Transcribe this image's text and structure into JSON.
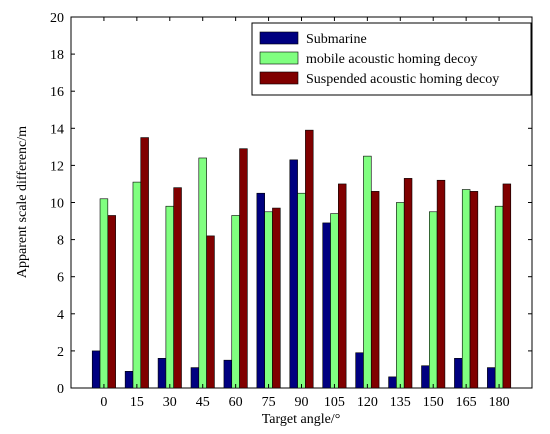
{
  "chart_data": {
    "type": "bar",
    "xlabel": "Target angle/°",
    "ylabel": "Apparent scale differenc/m",
    "categories": [
      "0",
      "15",
      "30",
      "45",
      "60",
      "75",
      "90",
      "105",
      "120",
      "135",
      "150",
      "165",
      "180"
    ],
    "ylim": [
      0,
      20
    ],
    "yticks": [
      "0",
      "2",
      "4",
      "6",
      "8",
      "10",
      "12",
      "14",
      "16",
      "18",
      "20"
    ],
    "grid": false,
    "legend_position": "top-right",
    "series": [
      {
        "name": "Submarine",
        "color": "#000080",
        "values": [
          2.0,
          0.9,
          1.6,
          1.1,
          1.5,
          10.5,
          12.3,
          8.9,
          1.9,
          0.6,
          1.2,
          1.6,
          1.1
        ]
      },
      {
        "name": "mobile acoustic homing decoy",
        "color": "#80ff80",
        "values": [
          10.2,
          11.1,
          9.8,
          12.4,
          9.3,
          9.5,
          10.5,
          9.4,
          12.5,
          10.0,
          9.5,
          10.7,
          9.8
        ]
      },
      {
        "name": "Suspended acoustic homing decoy",
        "color": "#800000",
        "values": [
          9.3,
          13.5,
          10.8,
          8.2,
          12.9,
          9.7,
          13.9,
          11.0,
          10.6,
          11.3,
          11.2,
          10.6,
          11.0
        ]
      }
    ]
  }
}
